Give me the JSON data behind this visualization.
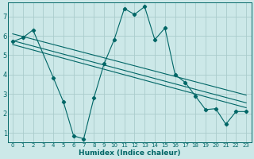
{
  "xlabel": "Humidex (Indice chaleur)",
  "background_color": "#cce8e8",
  "grid_color": "#aacccc",
  "line_color": "#006666",
  "xlim": [
    -0.5,
    23.5
  ],
  "ylim": [
    0.5,
    7.7
  ],
  "yticks": [
    1,
    2,
    3,
    4,
    5,
    6,
    7
  ],
  "xticks": [
    0,
    1,
    2,
    3,
    4,
    5,
    6,
    7,
    8,
    9,
    10,
    11,
    12,
    13,
    14,
    15,
    16,
    17,
    18,
    19,
    20,
    21,
    22,
    23
  ],
  "main_series": {
    "x": [
      0,
      1,
      2,
      4,
      5,
      6,
      7,
      8,
      9,
      10,
      11,
      12,
      13,
      14,
      15,
      16,
      17,
      18,
      19,
      20,
      21,
      22,
      23
    ],
    "y": [
      5.7,
      5.9,
      6.3,
      3.85,
      2.6,
      0.85,
      0.7,
      2.8,
      4.55,
      5.8,
      7.4,
      7.1,
      7.5,
      5.8,
      6.4,
      4.0,
      3.6,
      2.9,
      2.2,
      2.25,
      1.45,
      2.1,
      2.1
    ]
  },
  "trend_lines": [
    {
      "x": [
        0,
        23
      ],
      "y": [
        6.1,
        2.95
      ]
    },
    {
      "x": [
        0,
        23
      ],
      "y": [
        5.75,
        2.55
      ]
    },
    {
      "x": [
        0,
        23
      ],
      "y": [
        5.55,
        2.3
      ]
    }
  ]
}
